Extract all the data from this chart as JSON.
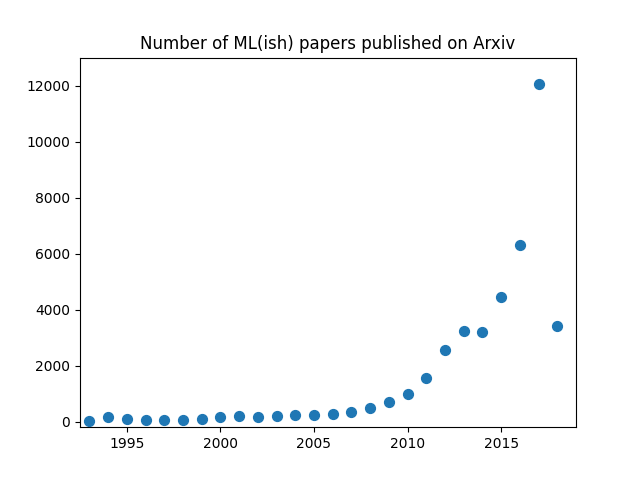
{
  "title": "Number of ML(ish) papers published on Arxiv",
  "years": [
    1993,
    1994,
    1995,
    1996,
    1997,
    1998,
    1999,
    2000,
    2001,
    2002,
    2003,
    2004,
    2005,
    2006,
    2007,
    2008,
    2009,
    2010,
    2011,
    2012,
    2013,
    2014,
    2015,
    2016,
    2017,
    2018
  ],
  "values": [
    20,
    150,
    100,
    50,
    50,
    60,
    100,
    150,
    200,
    180,
    200,
    220,
    250,
    280,
    350,
    500,
    700,
    1000,
    1550,
    2550,
    3250,
    3200,
    4450,
    6300,
    12050,
    3400
  ],
  "dot_color": "#1f77b4",
  "dot_size": 50,
  "xlim": [
    1992.5,
    2019
  ],
  "ylim": [
    -200,
    13000
  ],
  "yticks": [
    0,
    2000,
    4000,
    6000,
    8000,
    10000,
    12000
  ],
  "xticks": [
    1995,
    2000,
    2005,
    2010,
    2015
  ]
}
